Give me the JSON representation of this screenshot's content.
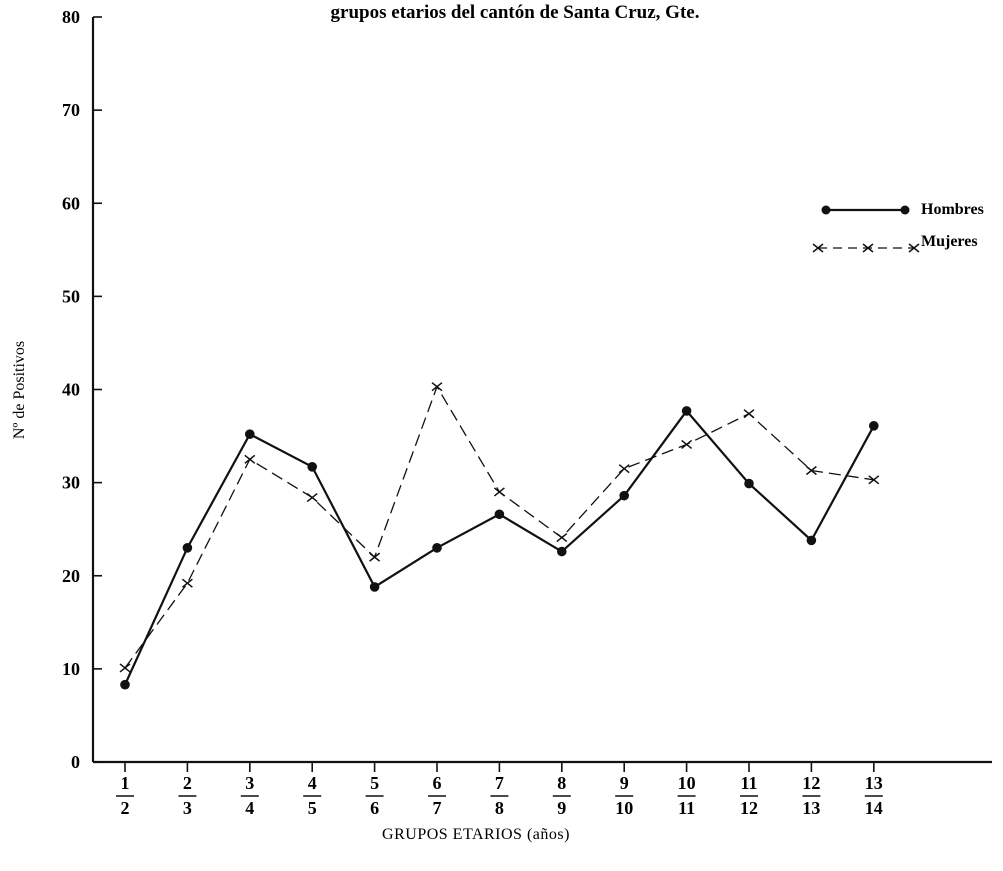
{
  "chart_data": {
    "type": "line",
    "title": "grupos etarios del cantón de Santa Cruz, Gte.",
    "xlabel": "GRUPOS ETARIOS (años)",
    "ylabel": "Nº de Positivos",
    "ylim": [
      0,
      80
    ],
    "yticks": [
      0,
      10,
      20,
      30,
      40,
      50,
      60,
      70,
      80
    ],
    "categories": [
      {
        "top": "1",
        "bottom": "2"
      },
      {
        "top": "2",
        "bottom": "3"
      },
      {
        "top": "3",
        "bottom": "4"
      },
      {
        "top": "4",
        "bottom": "5"
      },
      {
        "top": "5",
        "bottom": "6"
      },
      {
        "top": "6",
        "bottom": "7"
      },
      {
        "top": "7",
        "bottom": "8"
      },
      {
        "top": "8",
        "bottom": "9"
      },
      {
        "top": "9",
        "bottom": "10"
      },
      {
        "top": "10",
        "bottom": "11"
      },
      {
        "top": "11",
        "bottom": "12"
      },
      {
        "top": "12",
        "bottom": "13"
      },
      {
        "top": "13",
        "bottom": "14"
      }
    ],
    "series": [
      {
        "name": "Hombres",
        "style": "solid",
        "marker": "dot",
        "values": [
          8.3,
          23.0,
          35.2,
          31.7,
          18.8,
          23.0,
          26.6,
          22.6,
          28.6,
          37.7,
          29.9,
          23.8,
          36.1
        ]
      },
      {
        "name": "Mujeres",
        "style": "dashed",
        "marker": "x",
        "values": [
          10.1,
          19.2,
          32.5,
          28.4,
          22.0,
          40.3,
          29.0,
          24.1,
          31.5,
          34.1,
          37.4,
          31.3,
          30.3
        ]
      }
    ],
    "legend_position": "right",
    "grid": false,
    "colors": {
      "line": "#111111",
      "background": "#ffffff"
    }
  }
}
